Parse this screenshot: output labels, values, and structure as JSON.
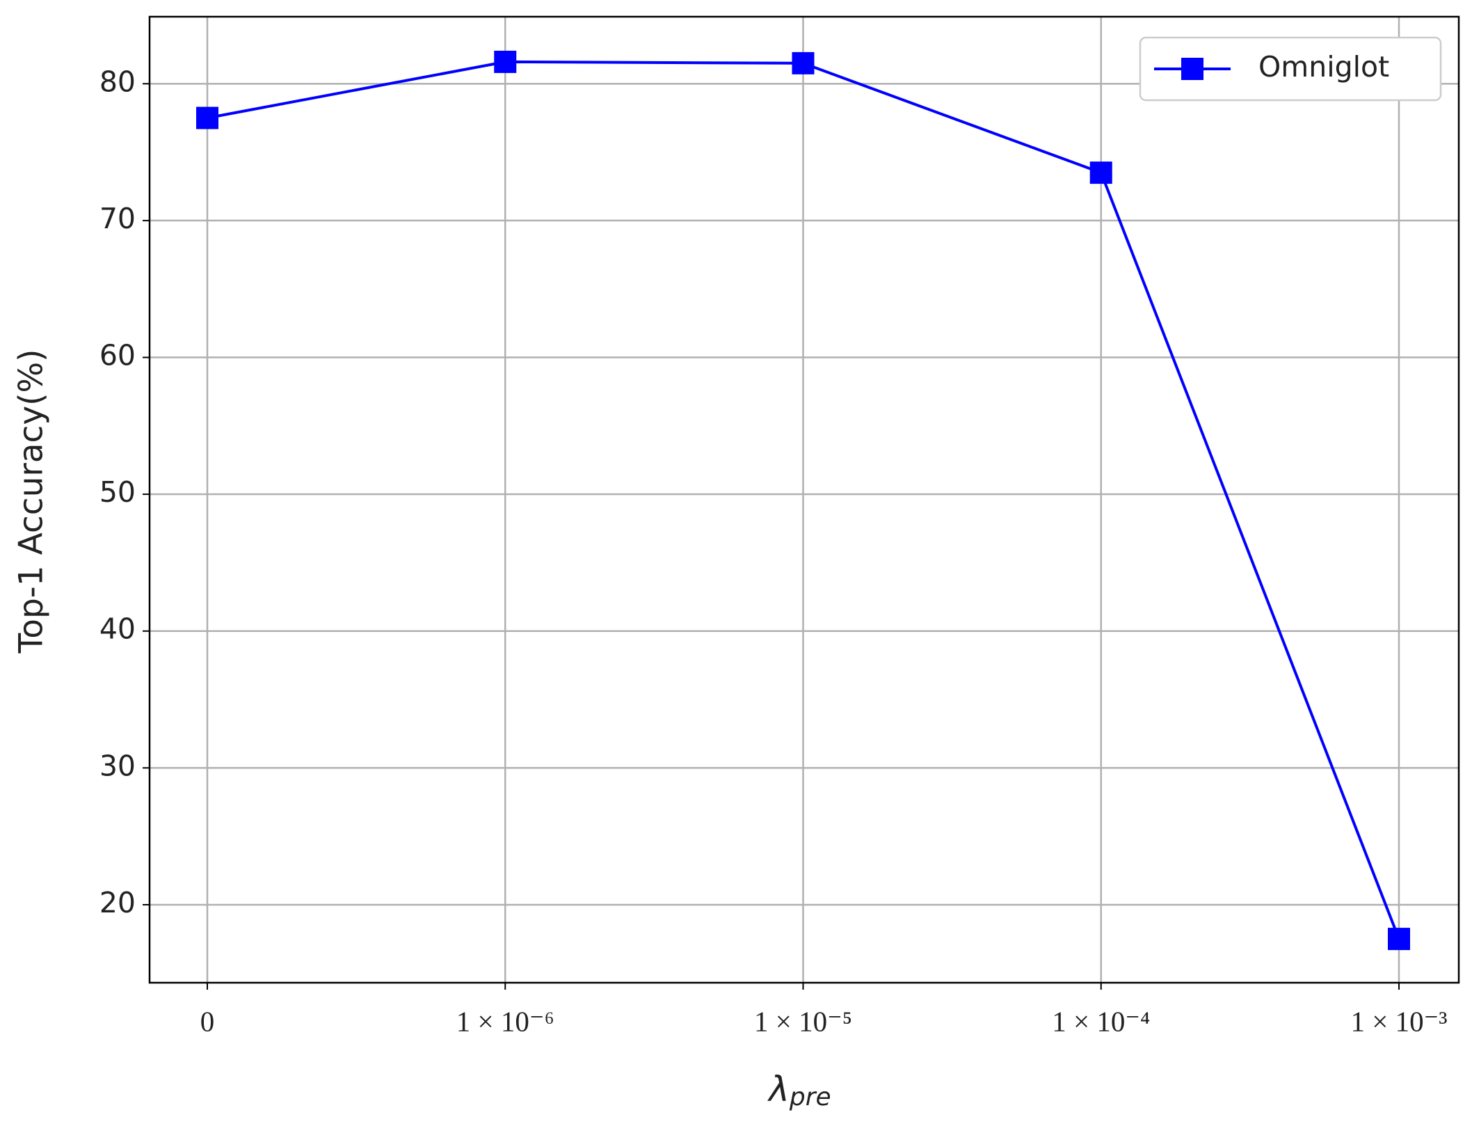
{
  "chart_data": {
    "type": "line",
    "xlabel": "λ",
    "xlabel_subscript": "pre",
    "ylabel": "Top-1 Accuracy(%)",
    "categories": [
      "0",
      "1 × 10⁻⁶",
      "1 × 10⁻⁵",
      "1 × 10⁻⁴",
      "1 × 10⁻³"
    ],
    "series": [
      {
        "name": "Omniglot",
        "color": "#0000ff",
        "values": [
          77.5,
          81.6,
          81.5,
          73.5,
          17.5
        ]
      }
    ],
    "ylim": [
      14.3,
      84.9
    ],
    "yticks": [
      20,
      30,
      40,
      50,
      60,
      70,
      80
    ],
    "grid": true,
    "legend": "upper right"
  }
}
